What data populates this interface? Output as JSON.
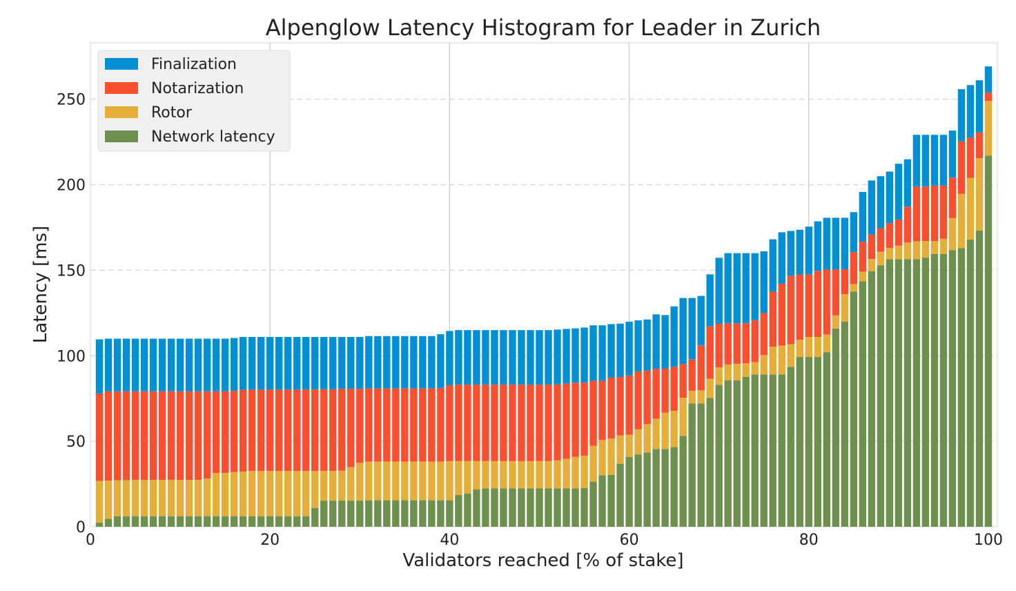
{
  "chart_data": {
    "type": "bar",
    "stacked": true,
    "title": "Alpenglow Latency Histogram for Leader in Zurich",
    "xlabel": "Validators reached [% of stake]",
    "ylabel": "Latency [ms]",
    "xlim": [
      0,
      101
    ],
    "ylim": [
      0,
      283
    ],
    "xticks": [
      "0",
      "20",
      "40",
      "60",
      "80",
      "100"
    ],
    "yticks": [
      "0",
      "50",
      "100",
      "150",
      "200",
      "250"
    ],
    "grid": true,
    "legend_position": "top-left",
    "x": [
      1,
      2,
      3,
      4,
      5,
      6,
      7,
      8,
      9,
      10,
      11,
      12,
      13,
      14,
      15,
      16,
      17,
      18,
      19,
      20,
      21,
      22,
      23,
      24,
      25,
      26,
      27,
      28,
      29,
      30,
      31,
      32,
      33,
      34,
      35,
      36,
      37,
      38,
      39,
      40,
      41,
      42,
      43,
      44,
      45,
      46,
      47,
      48,
      49,
      50,
      51,
      52,
      53,
      54,
      55,
      56,
      57,
      58,
      59,
      60,
      61,
      62,
      63,
      64,
      65,
      66,
      67,
      68,
      69,
      70,
      71,
      72,
      73,
      74,
      75,
      76,
      77,
      78,
      79,
      80,
      81,
      82,
      83,
      84,
      85,
      86,
      87,
      88,
      89,
      90,
      91,
      92,
      93,
      94,
      95,
      96,
      97,
      98,
      99,
      100
    ],
    "series": [
      {
        "name": "Network latency",
        "color": "#6d904f",
        "values": [
          2.4,
          4.7,
          6.2,
          6.2,
          6.2,
          6.2,
          6.2,
          6.2,
          6.2,
          6.2,
          6.2,
          6.2,
          6.2,
          6.2,
          6.2,
          6.2,
          6.2,
          6.2,
          6.2,
          6.2,
          6.2,
          6.2,
          6.2,
          6.2,
          11.0,
          15.3,
          15.3,
          15.3,
          15.3,
          15.3,
          15.5,
          15.5,
          15.5,
          15.5,
          15.5,
          15.5,
          15.5,
          15.5,
          15.5,
          15.5,
          18.6,
          19.5,
          21.8,
          22.4,
          22.4,
          22.4,
          22.4,
          22.4,
          22.4,
          22.4,
          22.4,
          22.4,
          22.4,
          22.4,
          22.6,
          26.4,
          30.1,
          30.4,
          36.9,
          40.9,
          42.3,
          43.5,
          45.5,
          45.4,
          46.6,
          53.2,
          72.1,
          72.1,
          75.3,
          83.0,
          85.6,
          85.6,
          87.6,
          89.1,
          89.1,
          89.1,
          89.1,
          93.5,
          99.3,
          99.3,
          99.3,
          102.1,
          115.9,
          119.9,
          137.6,
          143.6,
          149.5,
          152.8,
          156.5,
          156.5,
          156.5,
          156.5,
          157.4,
          159.5,
          159.5,
          161.7,
          162.9,
          168.0,
          173.2,
          217.0
        ]
      },
      {
        "name": "Rotor",
        "color": "#e5ae38",
        "values": [
          24.4,
          22.3,
          21.0,
          21.0,
          21.2,
          21.2,
          21.2,
          21.2,
          21.2,
          21.2,
          21.2,
          21.2,
          22.0,
          25.3,
          25.3,
          25.8,
          26.1,
          26.4,
          26.4,
          26.4,
          26.4,
          26.4,
          26.4,
          26.4,
          21.6,
          17.3,
          17.3,
          17.5,
          19.6,
          22.1,
          22.6,
          22.6,
          22.6,
          22.6,
          22.6,
          22.6,
          22.6,
          22.6,
          22.6,
          22.9,
          19.8,
          18.9,
          16.6,
          16.0,
          16.0,
          16.0,
          16.0,
          16.0,
          16.0,
          16.0,
          16.0,
          16.4,
          17.3,
          18.5,
          19.0,
          20.9,
          20.6,
          21.2,
          16.5,
          13.0,
          14.7,
          16.5,
          17.7,
          21.3,
          21.2,
          22.3,
          7.4,
          7.7,
          11.2,
          10.2,
          9.3,
          9.7,
          8.0,
          7.2,
          11.3,
          16.2,
          16.9,
          13.2,
          10.0,
          11.7,
          11.7,
          10.3,
          7.7,
          16.1,
          4.3,
          5.5,
          7.1,
          8.0,
          6.6,
          7.9,
          9.7,
          10.4,
          9.7,
          7.6,
          8.9,
          18.8,
          31.8,
          36.0,
          42.4,
          32.0
        ]
      },
      {
        "name": "Notarization",
        "color": "#fc4f30",
        "values": [
          51.2,
          52.2,
          52.0,
          52.0,
          51.8,
          51.8,
          51.8,
          51.8,
          51.8,
          51.8,
          51.8,
          51.8,
          51.0,
          47.7,
          47.7,
          47.5,
          47.8,
          47.6,
          47.6,
          47.6,
          47.6,
          47.6,
          47.6,
          47.6,
          47.8,
          47.8,
          47.8,
          47.9,
          45.8,
          43.3,
          42.8,
          42.8,
          42.8,
          42.8,
          42.8,
          42.8,
          42.8,
          42.8,
          43.1,
          44.4,
          44.7,
          44.7,
          44.7,
          44.7,
          44.7,
          44.7,
          44.7,
          44.7,
          44.7,
          44.7,
          44.7,
          44.4,
          44.1,
          43.4,
          42.7,
          38.1,
          34.7,
          35.6,
          34.2,
          34.6,
          33.9,
          31.4,
          29.2,
          25.8,
          25.7,
          19.6,
          18.5,
          26.3,
          30.7,
          25.5,
          24.1,
          23.7,
          23.4,
          24.5,
          24.6,
          32.2,
          36.2,
          40.1,
          38.2,
          36.5,
          38.7,
          38.0,
          26.8,
          14.6,
          18.7,
          17.6,
          14.3,
          13.8,
          14.5,
          15.3,
          21.0,
          32.0,
          31.8,
          32.4,
          31.1,
          23.7,
          30.7,
          23.7,
          15.0,
          4.8
        ]
      },
      {
        "name": "Finalization",
        "color": "#008fd5",
        "values": [
          31.6,
          30.8,
          30.8,
          30.8,
          30.8,
          30.8,
          30.8,
          30.8,
          30.8,
          30.8,
          30.8,
          30.8,
          30.8,
          30.8,
          30.8,
          30.9,
          30.9,
          30.8,
          30.8,
          30.8,
          30.8,
          30.8,
          30.8,
          30.8,
          30.6,
          30.6,
          30.6,
          30.3,
          30.3,
          30.3,
          30.6,
          30.6,
          30.6,
          30.6,
          30.6,
          30.6,
          30.6,
          30.6,
          31.4,
          31.7,
          31.9,
          31.9,
          31.9,
          31.9,
          31.9,
          31.9,
          31.9,
          31.9,
          31.9,
          31.9,
          31.9,
          32.1,
          31.9,
          31.7,
          32.2,
          32.4,
          32.4,
          31.3,
          31.2,
          31.4,
          29.8,
          29.8,
          31.8,
          31.3,
          35.4,
          38.7,
          35.8,
          28.9,
          30.4,
          38.6,
          41.0,
          41.0,
          41.0,
          39.2,
          36.1,
          30.6,
          30.0,
          26.2,
          26.2,
          28.0,
          28.9,
          30.3,
          30.3,
          30.1,
          23.4,
          29.1,
          31.6,
          30.4,
          30.1,
          32.6,
          27.7,
          30.3,
          30.3,
          29.7,
          29.7,
          27.5,
          30.5,
          30.6,
          30.5,
          15.4
        ]
      }
    ],
    "legend": [
      "Finalization",
      "Notarization",
      "Rotor",
      "Network latency"
    ]
  }
}
